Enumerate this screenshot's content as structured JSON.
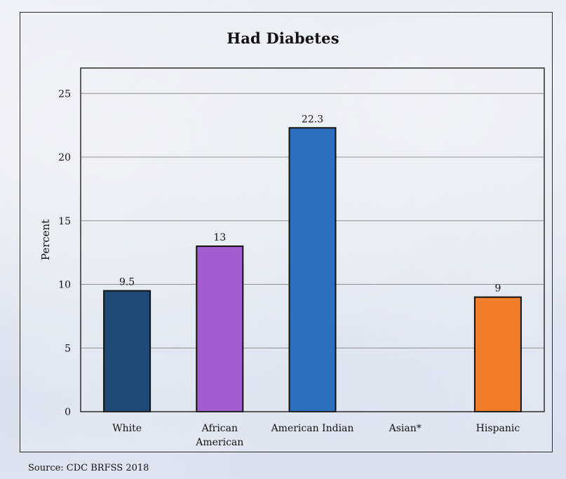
{
  "chart_data": {
    "type": "bar",
    "title": "Had Diabetes",
    "ylabel": "Percent",
    "xlabel": "",
    "ylim": [
      0,
      27
    ],
    "yticks": [
      0,
      5,
      10,
      15,
      20,
      25
    ],
    "grid": true,
    "categories": [
      "White",
      "African American",
      "American Indian",
      "Asian*",
      "Hispanic"
    ],
    "values": [
      9.5,
      13,
      22.3,
      null,
      9
    ],
    "data_labels": [
      "9.5",
      "13",
      "22.3",
      "",
      "9"
    ],
    "colors": [
      "#1f4a78",
      "#a35dd0",
      "#2b6fbd",
      "#ffffff",
      "#f07d2a"
    ]
  },
  "source": "Source: CDC BRFSS 2018"
}
